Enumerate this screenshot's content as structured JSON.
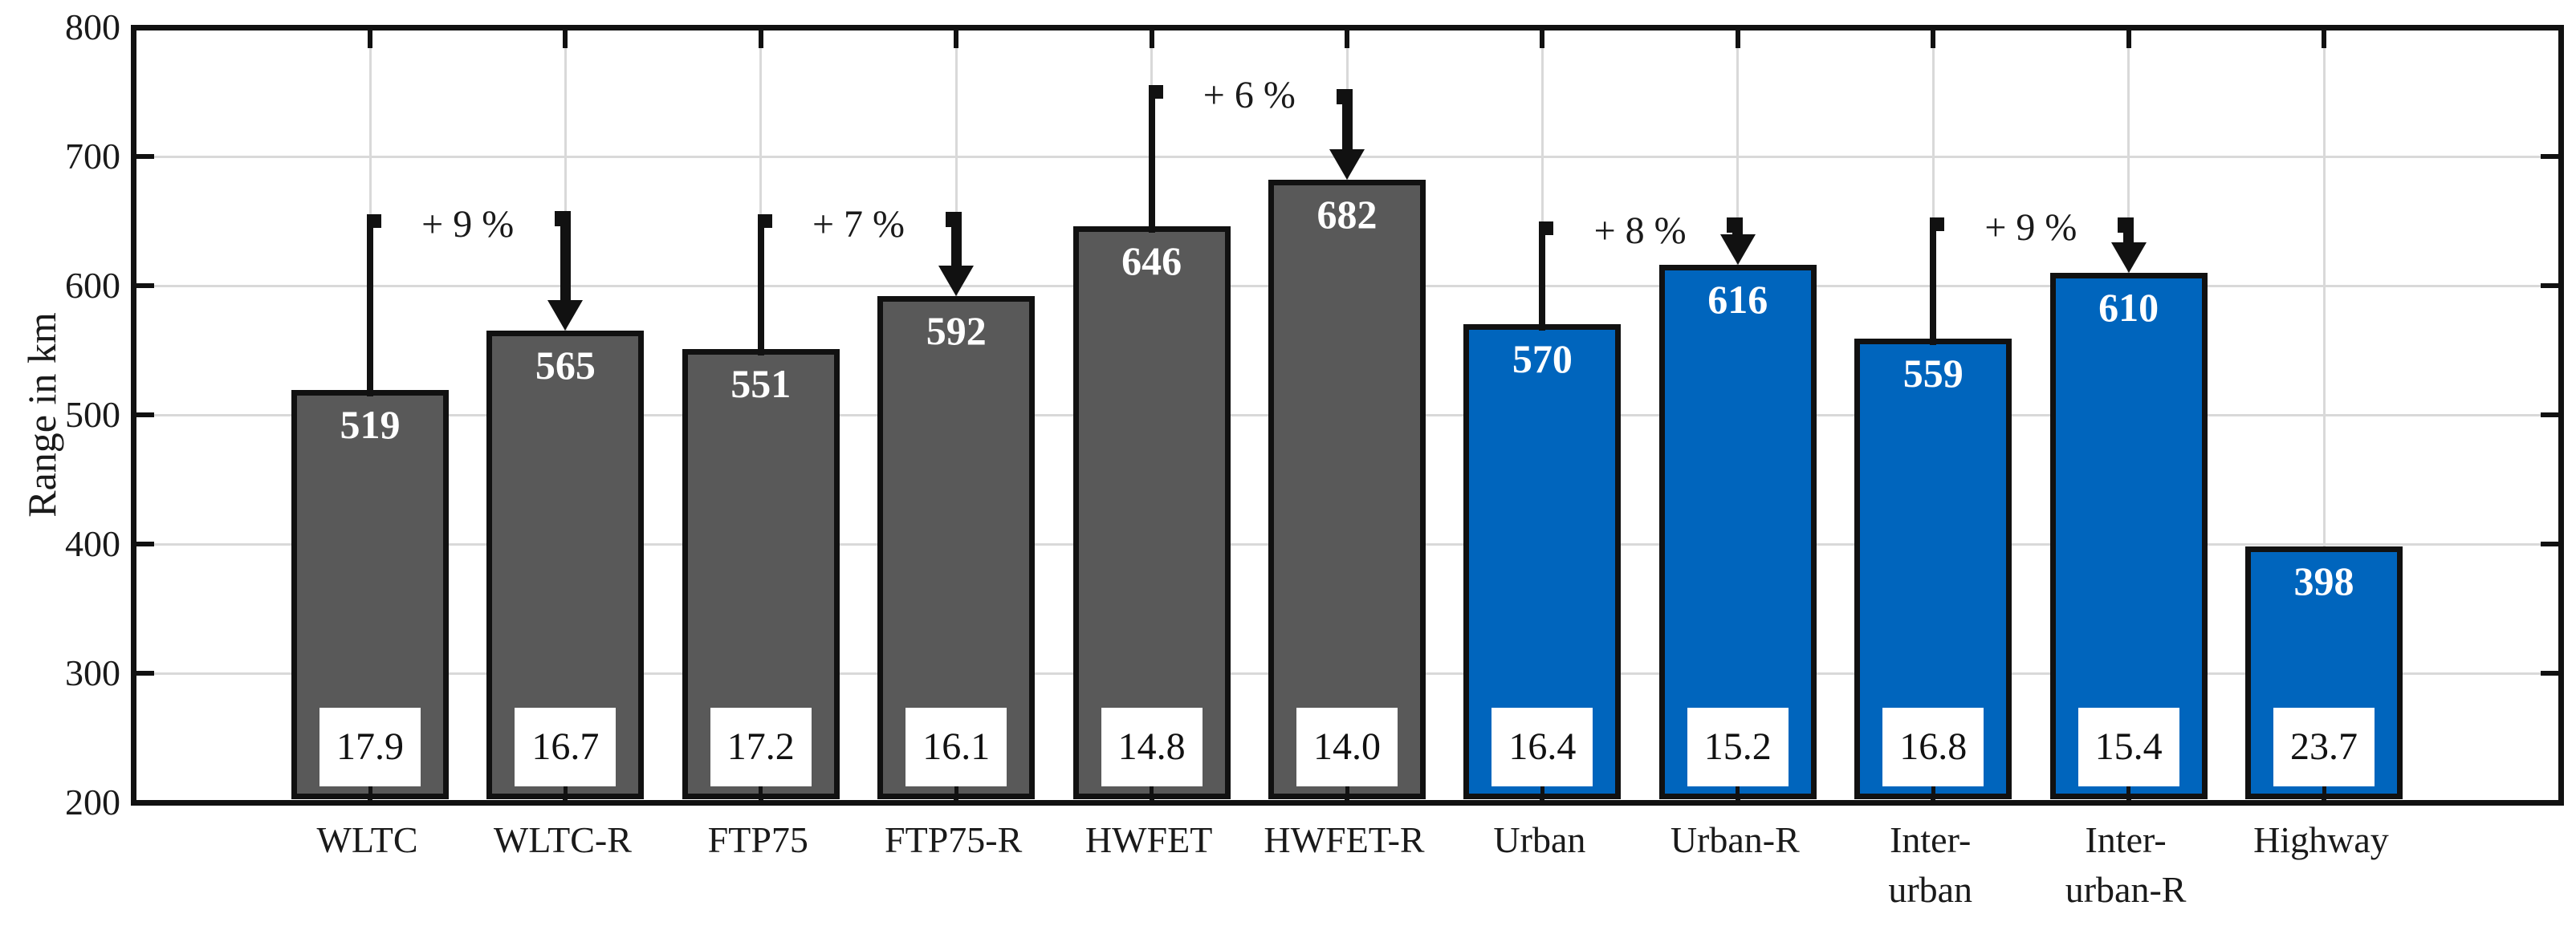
{
  "figure": {
    "background": "#FFFFFF"
  },
  "colors": {
    "bar_gray": "#595959",
    "bar_blue": "#0065BD",
    "axis": "#111111",
    "grid": "#D9D9D9",
    "bar_value_text": "#FFFFFF",
    "annotation": "#111111",
    "text": "#1A1A1A",
    "box_background": "#FFFFFF"
  },
  "chart_data": {
    "type": "bar",
    "title": "",
    "xlabel": "",
    "ylabel": "Range in km",
    "ylim": [
      200,
      800
    ],
    "yticks": [
      200,
      300,
      400,
      500,
      600,
      700,
      800
    ],
    "grid": "horizontal and vertical light-gray gridlines, boxed axes with inward ticks",
    "legend": "none",
    "categories": [
      "WLTC",
      "WLTC-R",
      "FTP75",
      "FTP75-R",
      "HWFET",
      "HWFET-R",
      "Urban",
      "Urban-R",
      "Inter-urban",
      "Inter-urban-R",
      "Highway"
    ],
    "category_label_lines": [
      [
        "WLTC"
      ],
      [
        "WLTC-R"
      ],
      [
        "FTP75"
      ],
      [
        "FTP75-R"
      ],
      [
        "HWFET"
      ],
      [
        "HWFET-R"
      ],
      [
        "Urban"
      ],
      [
        "Urban-R"
      ],
      [
        "Inter-",
        "urban"
      ],
      [
        "Inter-",
        "urban-R"
      ],
      [
        "Highway"
      ]
    ],
    "values": [
      519,
      565,
      551,
      592,
      646,
      682,
      570,
      616,
      559,
      610,
      398
    ],
    "bar_colors": [
      "gray",
      "gray",
      "gray",
      "gray",
      "gray",
      "gray",
      "blue",
      "blue",
      "blue",
      "blue",
      "blue"
    ],
    "consumption_box_values": [
      "17.9",
      "16.7",
      "17.2",
      "16.1",
      "14.8",
      "14.0",
      "16.4",
      "15.2",
      "16.8",
      "15.4",
      "23.7"
    ],
    "annotations": [
      {
        "from_index": 0,
        "to_index": 1,
        "label": "+ 9 %",
        "line_top": 655,
        "arrow_top": 658
      },
      {
        "from_index": 2,
        "to_index": 3,
        "label": "+ 7 %",
        "line_top": 655,
        "arrow_top": 657
      },
      {
        "from_index": 4,
        "to_index": 5,
        "label": "+ 6 %",
        "line_top": 755,
        "arrow_top": 752
      },
      {
        "from_index": 6,
        "to_index": 7,
        "label": "+ 8 %",
        "line_top": 650,
        "arrow_top": 653
      },
      {
        "from_index": 8,
        "to_index": 9,
        "label": "+ 9 %",
        "line_top": 653,
        "arrow_top": 653
      }
    ]
  }
}
